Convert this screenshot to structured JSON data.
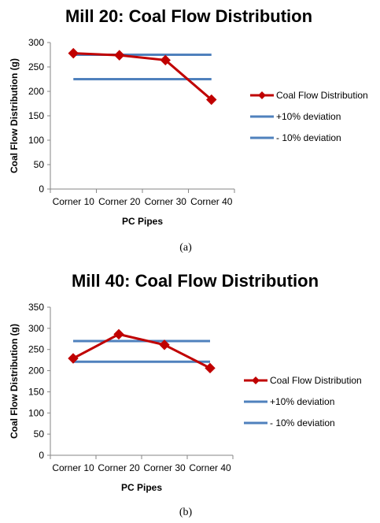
{
  "chart_data": [
    {
      "type": "line",
      "title": "Mill 20: Coal Flow Distribution",
      "xlabel": "PC Pipes",
      "ylabel": "Coal Flow Distribution (g)",
      "categories": [
        "Corner 10",
        "Corner 20",
        "Corner 30",
        "Corner 40"
      ],
      "ylim": [
        0,
        300
      ],
      "yticks": [
        0,
        50,
        100,
        150,
        200,
        250,
        300
      ],
      "grid": false,
      "legend": "right",
      "series": [
        {
          "name": "Coal Flow Distribution",
          "values": [
            278,
            274,
            264,
            183
          ],
          "color": "#c00000",
          "marker": "diamond"
        },
        {
          "name": "+10% deviation",
          "values": [
            275,
            275,
            275,
            275
          ],
          "color": "#4f81bd",
          "marker": "none"
        },
        {
          "name": "- 10% deviation",
          "values": [
            225,
            225,
            225,
            225
          ],
          "color": "#4f81bd",
          "marker": "none"
        }
      ],
      "caption": "(a)"
    },
    {
      "type": "line",
      "title": "Mill 40: Coal Flow Distribution",
      "xlabel": "PC Pipes",
      "ylabel": "Coal Flow Distribution (g)",
      "categories": [
        "Corner 10",
        "Corner 20",
        "Corner 30",
        "Corner 40"
      ],
      "ylim": [
        0,
        350
      ],
      "yticks": [
        0,
        50,
        100,
        150,
        200,
        250,
        300,
        350
      ],
      "grid": false,
      "legend": "right",
      "series": [
        {
          "name": "Coal Flow Distribution",
          "values": [
            229,
            286,
            261,
            206
          ],
          "color": "#c00000",
          "marker": "diamond"
        },
        {
          "name": "+10% deviation",
          "values": [
            270,
            270,
            270,
            270
          ],
          "color": "#4f81bd",
          "marker": "none"
        },
        {
          "name": "- 10% deviation",
          "values": [
            221,
            221,
            221,
            221
          ],
          "color": "#4f81bd",
          "marker": "none"
        }
      ],
      "caption": "(b)"
    }
  ]
}
